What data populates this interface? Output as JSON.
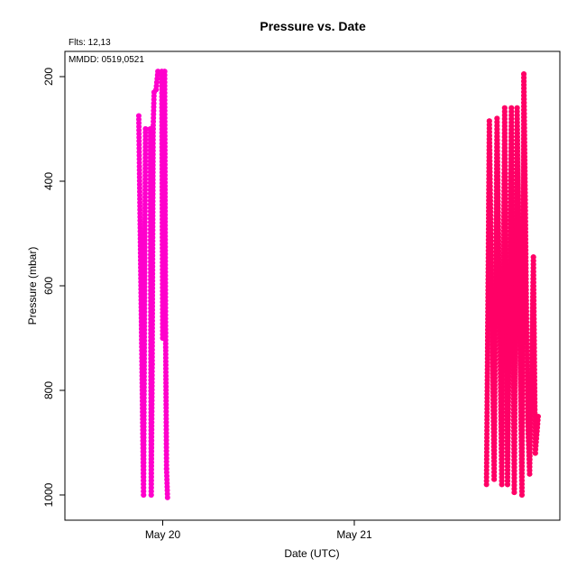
{
  "annotations": {
    "flights": "Flts: 12,13",
    "mmdd": "MMDD: 0519,0521"
  },
  "chart_data": {
    "type": "scatter",
    "title": "Pressure  vs. Date",
    "xlabel": "Date (UTC)",
    "ylabel": "Pressure (mbar)",
    "x_unit": "day (0 = May 20 00:00 UTC)",
    "xlim": [
      -0.5,
      2.05
    ],
    "ylim": [
      1050,
      150
    ],
    "y_reversed": true,
    "x_ticks": [
      {
        "value": 0,
        "label": "May 20"
      },
      {
        "value": 1,
        "label": "May 21"
      }
    ],
    "y_ticks": [
      {
        "value": 200,
        "label": "200"
      },
      {
        "value": 400,
        "label": "400"
      },
      {
        "value": 600,
        "label": "600"
      },
      {
        "value": 800,
        "label": "800"
      },
      {
        "value": 1000,
        "label": "1000"
      }
    ],
    "grid": false,
    "series": [
      {
        "color": "#ff00cc",
        "x": [
          -0.125,
          -0.1,
          -0.09,
          -0.065,
          -0.06,
          -0.055,
          -0.05,
          -0.045,
          -0.035,
          -0.025,
          -0.005,
          0.0,
          0.01,
          0.015,
          0.02,
          0.025
        ],
        "y": [
          275,
          1000,
          300,
          300,
          1000,
          750,
          300,
          230,
          225,
          190,
          190,
          700,
          190,
          690,
          950,
          1005
        ]
      },
      {
        "color": "#ff0066",
        "x": [
          1.69,
          1.705,
          1.73,
          1.745,
          1.77,
          1.785,
          1.8,
          1.82,
          1.835,
          1.85,
          1.875,
          1.885,
          1.905,
          1.915,
          1.935,
          1.945,
          1.96
        ],
        "y": [
          980,
          285,
          970,
          280,
          980,
          260,
          980,
          260,
          995,
          260,
          1000,
          195,
          855,
          960,
          545,
          920,
          850
        ]
      }
    ]
  }
}
